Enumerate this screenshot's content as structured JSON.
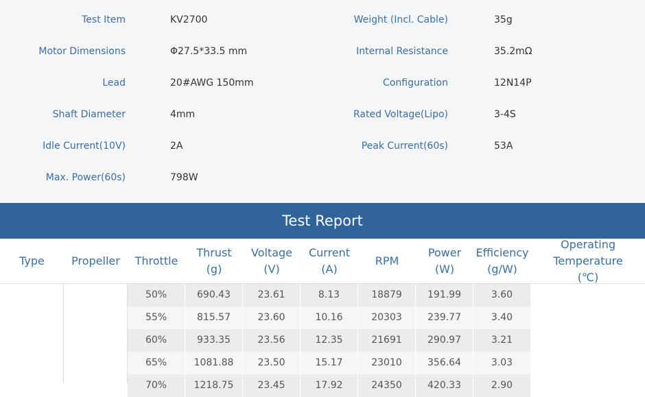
{
  "specs": {
    "left": [
      {
        "label": "Test Item",
        "value": "KV2700"
      },
      {
        "label": "Motor Dimensions",
        "value": "Φ27.5*33.5 mm"
      },
      {
        "label": "Lead",
        "value": "20#AWG 150mm"
      },
      {
        "label": "Shaft Diameter",
        "value": "4mm"
      },
      {
        "label": "Idle Current(10V)",
        "value": "2A"
      },
      {
        "label": "Max. Power(60s)",
        "value": "798W"
      }
    ],
    "right": [
      {
        "label": "Weight (Incl. Cable)",
        "value": "35g"
      },
      {
        "label": "Internal Resistance",
        "value": "35.2mΩ"
      },
      {
        "label": "Configuration",
        "value": "12N14P"
      },
      {
        "label": "Rated Voltage(Lipo)",
        "value": "3-4S"
      },
      {
        "label": "Peak Current(60s)",
        "value": "53A"
      }
    ]
  },
  "report": {
    "title": "Test Report",
    "headers": [
      [
        "Type"
      ],
      [
        "Propeller"
      ],
      [
        "Throttle"
      ],
      [
        "Thrust",
        "(g)"
      ],
      [
        "Voltage",
        "(V)"
      ],
      [
        "Current",
        "(A)"
      ],
      [
        "RPM"
      ],
      [
        "Power",
        "(W)"
      ],
      [
        "Efficiency",
        "(g/W)"
      ],
      [
        "Operating",
        "Temperature",
        "(℃)"
      ]
    ],
    "rows": [
      [
        "50%",
        "690.43",
        "23.61",
        "8.13",
        "18879",
        "191.99",
        "3.60"
      ],
      [
        "55%",
        "815.57",
        "23.60",
        "10.16",
        "20303",
        "239.77",
        "3.40"
      ],
      [
        "60%",
        "933.35",
        "23.56",
        "12.35",
        "21691",
        "290.97",
        "3.21"
      ],
      [
        "65%",
        "1081.88",
        "23.50",
        "15.17",
        "23010",
        "356.64",
        "3.03"
      ],
      [
        "70%",
        "1218.75",
        "23.45",
        "17.92",
        "24350",
        "420.33",
        "2.90"
      ]
    ]
  }
}
